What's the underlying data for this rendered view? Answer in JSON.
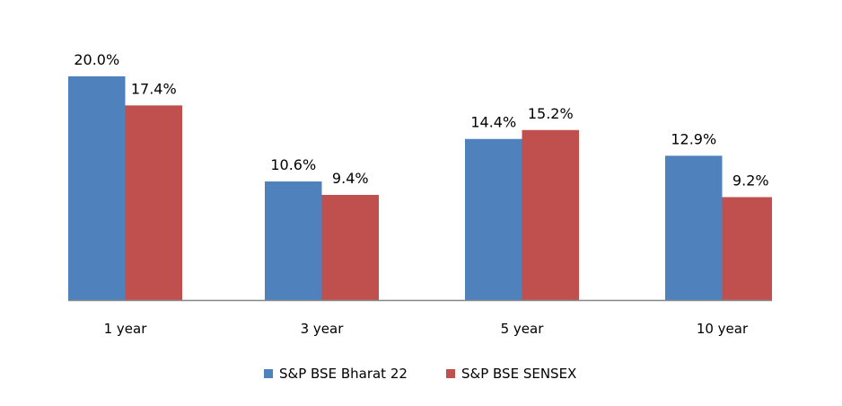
{
  "chart_data": {
    "type": "bar",
    "categories": [
      "1 year",
      "3 year",
      "5 year",
      "10 year"
    ],
    "series": [
      {
        "name": "S&P BSE Bharat 22",
        "color": "#4f81bd",
        "values": [
          20.0,
          10.6,
          14.4,
          12.9
        ],
        "labels": [
          "20.0%",
          "10.6%",
          "14.4%",
          "12.9%"
        ]
      },
      {
        "name": "S&P BSE SENSEX",
        "color": "#c0504d",
        "values": [
          17.4,
          9.4,
          15.2,
          9.2
        ],
        "labels": [
          "17.4%",
          "9.4%",
          "15.2%",
          "9.2%"
        ]
      }
    ],
    "title": "",
    "xlabel": "",
    "ylabel": "",
    "ylim": [
      0,
      20
    ],
    "grid": false,
    "legend": "bottom",
    "axis_color": "#868686"
  }
}
